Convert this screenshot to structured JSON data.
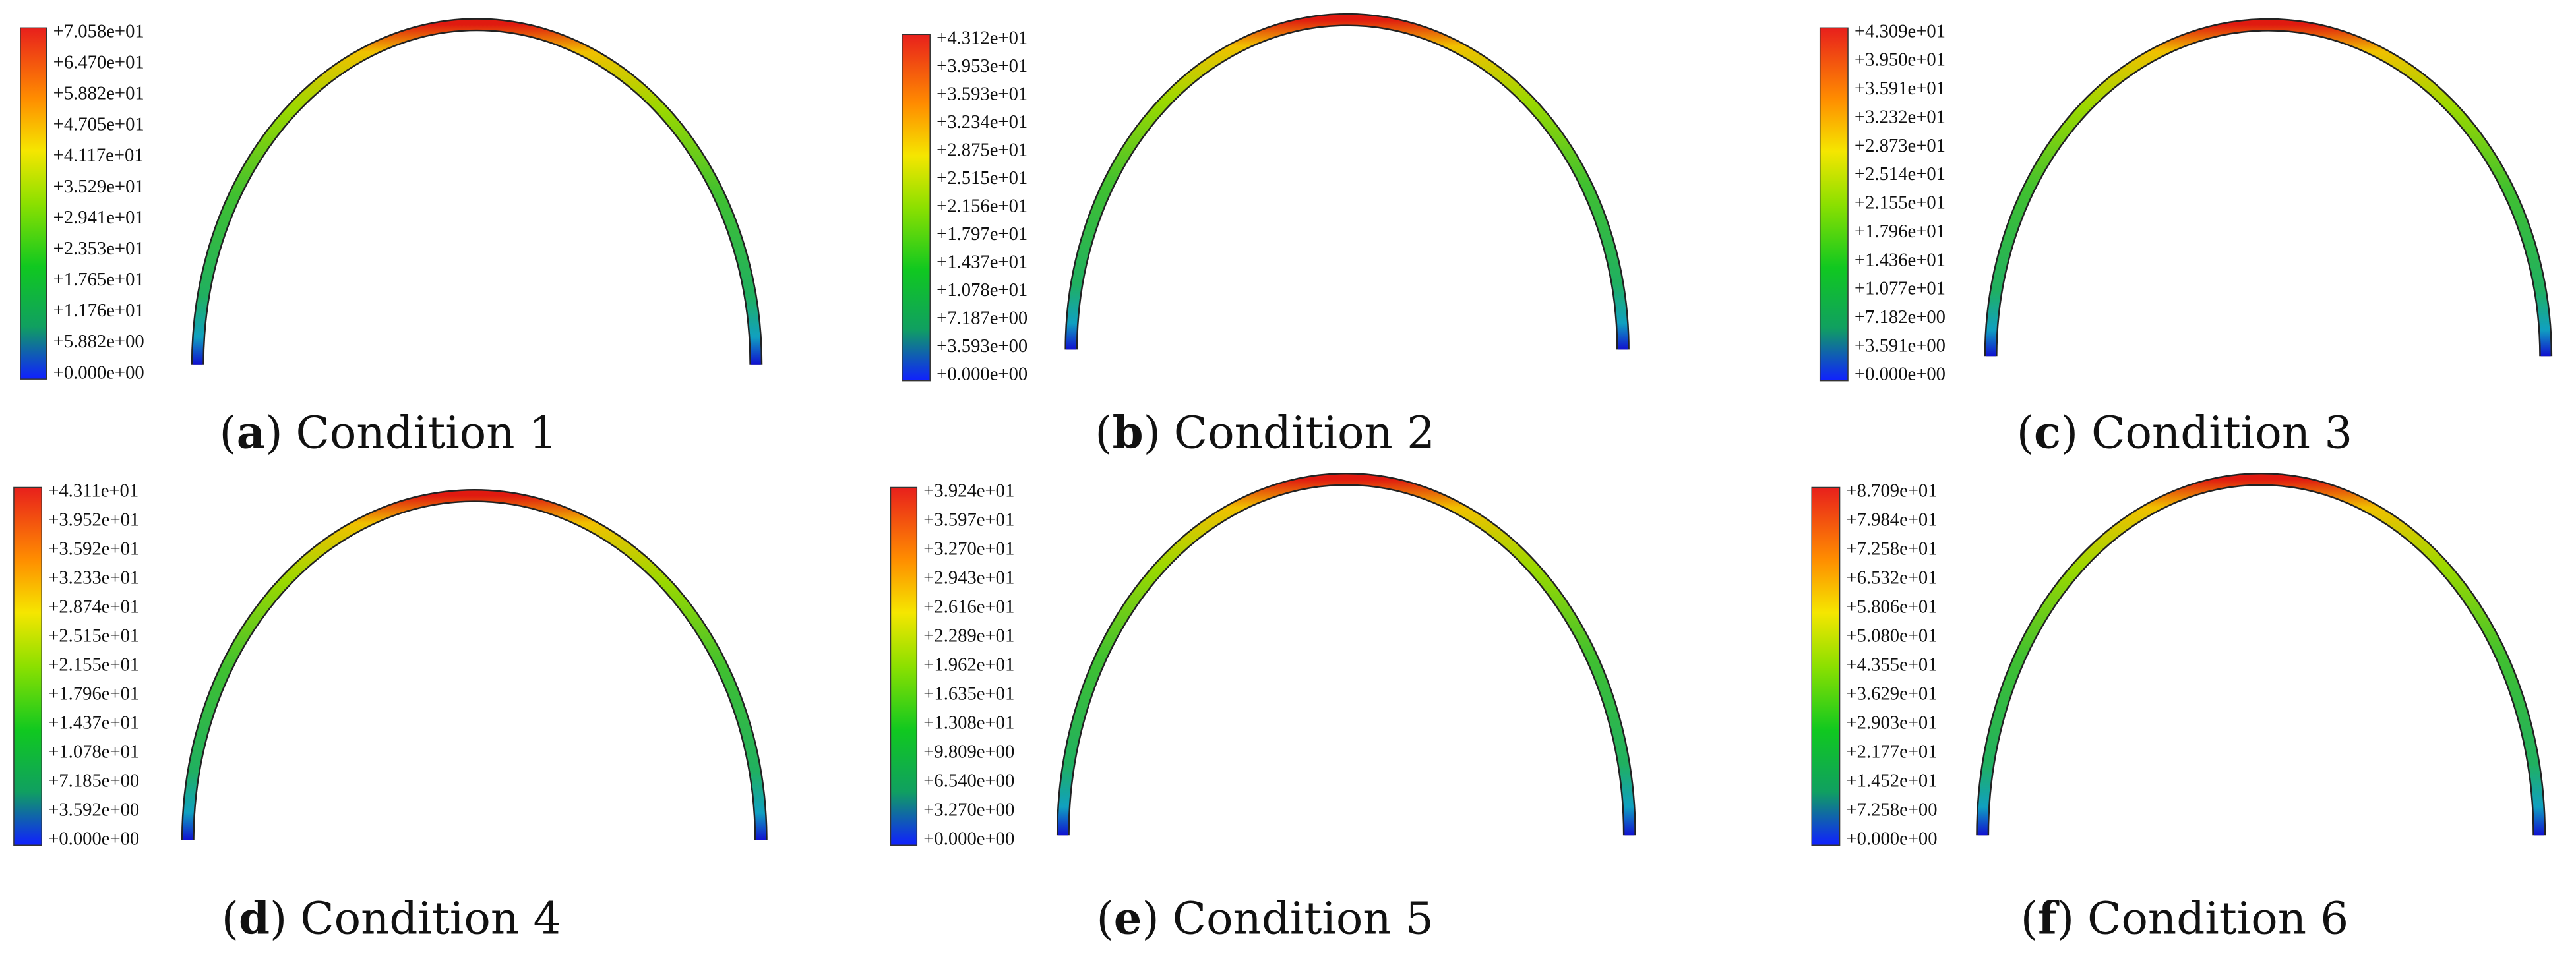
{
  "panels": [
    {
      "caption": {
        "open": "(",
        "letter": "a",
        "close": ")",
        "text": "Condition 1"
      },
      "legend": [
        "+7.058e+01",
        "+6.470e+01",
        "+5.882e+01",
        "+4.705e+01",
        "+4.117e+01",
        "+3.529e+01",
        "+2.941e+01",
        "+2.353e+01",
        "+1.765e+01",
        "+1.176e+01",
        "+5.882e+00",
        "+0.000e+00"
      ]
    },
    {
      "caption": {
        "open": "(",
        "letter": "b",
        "close": ")",
        "text": "Condition 2"
      },
      "legend": [
        "+4.312e+01",
        "+3.953e+01",
        "+3.593e+01",
        "+3.234e+01",
        "+2.875e+01",
        "+2.515e+01",
        "+2.156e+01",
        "+1.797e+01",
        "+1.437e+01",
        "+1.078e+01",
        "+7.187e+00",
        "+3.593e+00",
        "+0.000e+00"
      ]
    },
    {
      "caption": {
        "open": "(",
        "letter": "c",
        "close": ")",
        "text": "Condition 3"
      },
      "legend": [
        "+4.309e+01",
        "+3.950e+01",
        "+3.591e+01",
        "+3.232e+01",
        "+2.873e+01",
        "+2.514e+01",
        "+2.155e+01",
        "+1.796e+01",
        "+1.436e+01",
        "+1.077e+01",
        "+7.182e+00",
        "+3.591e+00",
        "+0.000e+00"
      ]
    },
    {
      "caption": {
        "open": "(",
        "letter": "d",
        "close": ")",
        "text": "Condition 4"
      },
      "legend": [
        "+4.311e+01",
        "+3.952e+01",
        "+3.592e+01",
        "+3.233e+01",
        "+2.874e+01",
        "+2.515e+01",
        "+2.155e+01",
        "+1.796e+01",
        "+1.437e+01",
        "+1.078e+01",
        "+7.185e+00",
        "+3.592e+00",
        "+0.000e+00"
      ]
    },
    {
      "caption": {
        "open": "(",
        "letter": "e",
        "close": ")",
        "text": "Condition 5"
      },
      "legend": [
        "+3.924e+01",
        "+3.597e+01",
        "+3.270e+01",
        "+2.943e+01",
        "+2.616e+01",
        "+2.289e+01",
        "+1.962e+01",
        "+1.635e+01",
        "+1.308e+01",
        "+9.809e+00",
        "+6.540e+00",
        "+3.270e+00",
        "+0.000e+00"
      ]
    },
    {
      "caption": {
        "open": "(",
        "letter": "f",
        "close": ")",
        "text": "Condition 6"
      },
      "legend": [
        "+8.709e+01",
        "+7.984e+01",
        "+7.258e+01",
        "+6.532e+01",
        "+5.806e+01",
        "+5.080e+01",
        "+4.355e+01",
        "+3.629e+01",
        "+2.903e+01",
        "+2.177e+01",
        "+1.452e+01",
        "+7.258e+00",
        "+0.000e+00"
      ]
    }
  ]
}
